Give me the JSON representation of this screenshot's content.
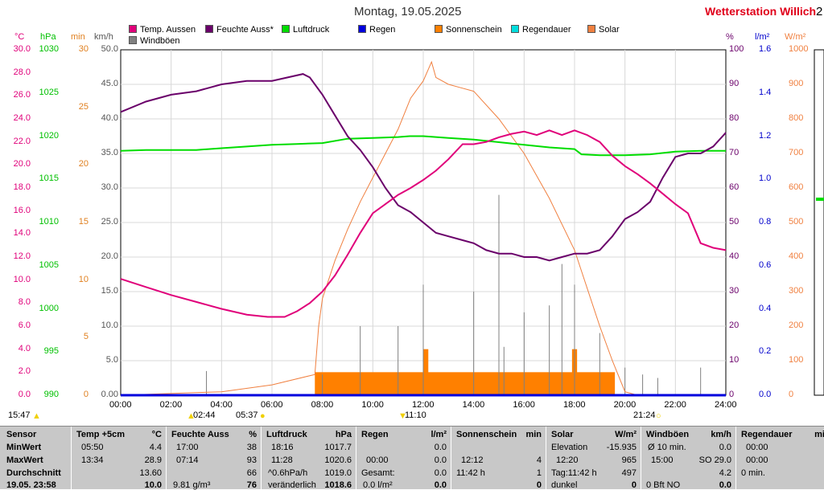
{
  "title": "Montag, 19.05.2025",
  "brand": "Wetterstation Willich",
  "brand_cut": "2",
  "legend": [
    {
      "label": "Temp. Aussen",
      "color": "#e0007a"
    },
    {
      "label": "Feuchte Auss*",
      "color": "#6a006a"
    },
    {
      "label": "Luftdruck",
      "color": "#00dd00"
    },
    {
      "label": "Regen",
      "color": "#0000dd"
    },
    {
      "label": "Sonnenschein",
      "color": "#ff8000"
    },
    {
      "label": "Regendauer",
      "color": "#00dddd"
    },
    {
      "label": "Solar",
      "color": "#f08040"
    },
    {
      "label": "Windböen",
      "color": "#808080"
    }
  ],
  "axes": {
    "units": {
      "temp": "°C",
      "hpa": "hPa",
      "min": "min",
      "kmh": "km/h",
      "pct": "%",
      "rain": "l/m²",
      "solar": "W/m²"
    },
    "temp": [
      "30.0",
      "28.0",
      "26.0",
      "24.0",
      "22.0",
      "20.0",
      "18.0",
      "16.0",
      "14.0",
      "12.0",
      "10.0",
      "8.0",
      "6.0",
      "4.0",
      "2.0",
      "0.0"
    ],
    "hpa": [
      "1030",
      "1025",
      "1020",
      "1015",
      "1010",
      "1005",
      "1000",
      "995",
      "990"
    ],
    "min": [
      "30",
      "25",
      "20",
      "15",
      "10",
      "5",
      "0"
    ],
    "kmh": [
      "50.0",
      "45.0",
      "40.0",
      "35.0",
      "30.0",
      "25.0",
      "20.0",
      "15.0",
      "10.0",
      "5.0",
      "0.00"
    ],
    "pct": [
      "100",
      "90",
      "80",
      "70",
      "60",
      "50",
      "40",
      "30",
      "20",
      "10",
      "0"
    ],
    "rain": [
      "1.6",
      "1.4",
      "1.2",
      "1.0",
      "0.8",
      "0.6",
      "0.4",
      "0.2",
      "0.0"
    ],
    "solar": [
      "1000",
      "900",
      "800",
      "700",
      "600",
      "500",
      "400",
      "300",
      "200",
      "100",
      "0"
    ],
    "x": [
      "00:00",
      "02:00",
      "04:00",
      "06:00",
      "08:00",
      "10:00",
      "12:00",
      "14:00",
      "16:00",
      "18:00",
      "20:00",
      "22:00",
      "24:00"
    ]
  },
  "events": {
    "left_time": "15:47",
    "sunrise": "02:44",
    "t537": "05:37",
    "noon": "11:10",
    "sunset": "21:24"
  },
  "chart_data": {
    "type": "line",
    "x_unit": "hours",
    "xlim": [
      0,
      24
    ],
    "series": [
      {
        "name": "Temp. Aussen",
        "unit": "°C",
        "axis": "temp",
        "color": "#e0007a",
        "points": [
          [
            0,
            10.1
          ],
          [
            1,
            9.4
          ],
          [
            2,
            8.7
          ],
          [
            3,
            8.1
          ],
          [
            4,
            7.5
          ],
          [
            5,
            7.0
          ],
          [
            5.83,
            6.8
          ],
          [
            6.5,
            6.8
          ],
          [
            7,
            7.3
          ],
          [
            7.5,
            8.0
          ],
          [
            8,
            9.0
          ],
          [
            8.5,
            10.4
          ],
          [
            9,
            12.2
          ],
          [
            9.5,
            14.1
          ],
          [
            10,
            15.8
          ],
          [
            10.5,
            16.6
          ],
          [
            11,
            17.4
          ],
          [
            11.5,
            18.0
          ],
          [
            12,
            18.7
          ],
          [
            12.5,
            19.5
          ],
          [
            13,
            20.5
          ],
          [
            13.56,
            21.8
          ],
          [
            14,
            21.8
          ],
          [
            14.5,
            22.0
          ],
          [
            15,
            22.4
          ],
          [
            15.5,
            22.7
          ],
          [
            16,
            22.9
          ],
          [
            16.5,
            22.6
          ],
          [
            17,
            23.0
          ],
          [
            17.5,
            22.6
          ],
          [
            18,
            23.0
          ],
          [
            18.5,
            22.6
          ],
          [
            19,
            22.0
          ],
          [
            19.5,
            20.8
          ],
          [
            20,
            19.9
          ],
          [
            20.5,
            19.2
          ],
          [
            21,
            18.4
          ],
          [
            21.5,
            17.5
          ],
          [
            22,
            16.6
          ],
          [
            22.5,
            15.8
          ],
          [
            23,
            13.2
          ],
          [
            23.5,
            12.8
          ],
          [
            24,
            12.6
          ]
        ]
      },
      {
        "name": "Feuchte Auss*",
        "unit": "%",
        "axis": "pct",
        "color": "#6a006a",
        "points": [
          [
            0,
            82
          ],
          [
            1,
            85
          ],
          [
            2,
            87
          ],
          [
            3,
            88
          ],
          [
            4,
            90
          ],
          [
            5,
            91
          ],
          [
            5.5,
            91
          ],
          [
            6,
            91
          ],
          [
            7.23,
            93
          ],
          [
            7.5,
            92
          ],
          [
            8,
            87
          ],
          [
            8.5,
            81
          ],
          [
            9,
            75
          ],
          [
            9.5,
            71
          ],
          [
            10,
            66
          ],
          [
            10.5,
            60
          ],
          [
            11,
            55
          ],
          [
            11.5,
            53
          ],
          [
            12,
            50
          ],
          [
            12.5,
            47
          ],
          [
            13,
            46
          ],
          [
            13.5,
            45
          ],
          [
            14,
            44
          ],
          [
            14.5,
            42
          ],
          [
            15,
            41
          ],
          [
            15.5,
            41
          ],
          [
            16,
            40
          ],
          [
            16.5,
            40
          ],
          [
            17,
            39
          ],
          [
            17.5,
            40
          ],
          [
            18,
            41
          ],
          [
            18.5,
            41
          ],
          [
            19,
            42
          ],
          [
            19.5,
            46
          ],
          [
            20,
            51
          ],
          [
            20.5,
            53
          ],
          [
            21,
            56
          ],
          [
            21.5,
            63
          ],
          [
            22,
            69
          ],
          [
            22.5,
            70
          ],
          [
            23,
            70
          ],
          [
            23.5,
            72
          ],
          [
            24,
            76
          ]
        ]
      },
      {
        "name": "Luftdruck",
        "unit": "hPa",
        "axis": "hpa",
        "color": "#00dd00",
        "points": [
          [
            0,
            1018.3
          ],
          [
            1,
            1018.4
          ],
          [
            2,
            1018.4
          ],
          [
            3,
            1018.4
          ],
          [
            4,
            1018.6
          ],
          [
            5,
            1018.8
          ],
          [
            6,
            1019.0
          ],
          [
            7,
            1019.1
          ],
          [
            8,
            1019.2
          ],
          [
            9,
            1019.7
          ],
          [
            10,
            1019.8
          ],
          [
            11,
            1019.9
          ],
          [
            11.47,
            1020.0
          ],
          [
            12,
            1020.0
          ],
          [
            13,
            1019.8
          ],
          [
            14,
            1019.6
          ],
          [
            15,
            1019.3
          ],
          [
            16,
            1019.0
          ],
          [
            17,
            1018.7
          ],
          [
            18,
            1018.5
          ],
          [
            18.27,
            1017.9
          ],
          [
            19,
            1017.8
          ],
          [
            20,
            1017.8
          ],
          [
            21,
            1017.9
          ],
          [
            22,
            1018.2
          ],
          [
            23,
            1018.3
          ],
          [
            24,
            1018.3
          ]
        ]
      },
      {
        "name": "Solar",
        "unit": "W/m²",
        "axis": "solar",
        "color": "#f08040",
        "points": [
          [
            0,
            0
          ],
          [
            4,
            10
          ],
          [
            6,
            30
          ],
          [
            7.7,
            60
          ],
          [
            7.85,
            200
          ],
          [
            8,
            280
          ],
          [
            8.5,
            390
          ],
          [
            9,
            480
          ],
          [
            9.5,
            560
          ],
          [
            10,
            630
          ],
          [
            10.5,
            700
          ],
          [
            11,
            770
          ],
          [
            11.5,
            860
          ],
          [
            12,
            910
          ],
          [
            12.33,
            965
          ],
          [
            12.5,
            920
          ],
          [
            13,
            900
          ],
          [
            13.5,
            890
          ],
          [
            14,
            880
          ],
          [
            15,
            800
          ],
          [
            16,
            700
          ],
          [
            17,
            570
          ],
          [
            18,
            420
          ],
          [
            19,
            200
          ],
          [
            19.5,
            100
          ],
          [
            20,
            10
          ],
          [
            20.5,
            0
          ],
          [
            24,
            0
          ]
        ]
      },
      {
        "name": "Sonnenschein",
        "unit": "min",
        "axis": "min",
        "color": "#ff8000",
        "bars": [
          [
            7.7,
            19.6,
            2
          ],
          [
            12.0,
            12.2,
            4
          ],
          [
            17.9,
            18.1,
            4
          ]
        ]
      },
      {
        "name": "Windböen",
        "unit": "km/h",
        "axis": "kmh",
        "color": "#808080",
        "points": [
          [
            3.4,
            3.5
          ],
          [
            8.0,
            3.0
          ],
          [
            9.5,
            10.0
          ],
          [
            11.0,
            10.0
          ],
          [
            12.0,
            16.0
          ],
          [
            14.0,
            15.0
          ],
          [
            15.0,
            29.0
          ],
          [
            15.2,
            7.0
          ],
          [
            16.0,
            12.0
          ],
          [
            17.0,
            13.0
          ],
          [
            17.5,
            19.0
          ],
          [
            18.0,
            16.0
          ],
          [
            19.0,
            9.0
          ],
          [
            20.0,
            4.0
          ],
          [
            20.7,
            3.0
          ],
          [
            21.3,
            2.5
          ],
          [
            23.0,
            4.0
          ]
        ]
      },
      {
        "name": "Regen",
        "unit": "l/m²",
        "axis": "rain",
        "color": "#0000dd",
        "points": [
          [
            0,
            0
          ],
          [
            24,
            0
          ]
        ]
      }
    ]
  },
  "table": {
    "rows": [
      "Sensor",
      "MinWert",
      "MaxWert",
      "Durchschnitt",
      "19.05. 23:58"
    ],
    "temp": {
      "head": "Temp +5cm",
      "unit": "°C",
      "min_t": "05:50",
      "min_v": "4.4",
      "max_t": "13:34",
      "max_v": "28.9",
      "avg": "13.60",
      "cur": "10.0"
    },
    "hum": {
      "head": "Feuchte Auss",
      "unit": "%",
      "min_t": "17:00",
      "min_v": "38",
      "max_t": "07:14",
      "max_v": "93",
      "avg": "66",
      "cur_l": "9.81 g/m³",
      "cur": "76"
    },
    "press": {
      "head": "Luftdruck",
      "unit": "hPa",
      "min_t": "18:16",
      "min_v": "1017.7",
      "max_t": "11:28",
      "max_v": "1020.6",
      "avg_l": "^0.6hPa/h",
      "avg": "1019.0",
      "cur_l": "veränderlich",
      "cur": "1018.6"
    },
    "rain": {
      "head": "Regen",
      "unit": "l/m²",
      "r1": "0.0",
      "r2_t": "00:00",
      "r2": "0.0",
      "r3_l": "Gesamt:",
      "r3": "0.0",
      "cur_l": "0.0 l/m²",
      "cur": "0.0"
    },
    "sun": {
      "head": "Sonnenschein",
      "unit": "min",
      "r2_t": "12:12",
      "r2": "4",
      "r3_t": "11:42 h",
      "r3": "1",
      "cur": "0"
    },
    "solar": {
      "head": "Solar",
      "unit": "W/m²",
      "r1_l": "Elevation",
      "r1": "-15.935",
      "r2_t": "12:20",
      "r2": "965",
      "r3_l": "Tag:11:42 h",
      "r3": "497",
      "cur_l": "dunkel",
      "cur": "0"
    },
    "wind": {
      "head": "Windböen",
      "unit": "km/h",
      "r1_l": "Ø 10 min.",
      "r1": "0.0",
      "r2_t": "15:00",
      "r2": "SO 29.0",
      "r3": "4.2",
      "cur_l": "0 Bft NO",
      "cur": "0.0"
    },
    "rdur": {
      "head": "Regendauer",
      "unit": "mi",
      "r1_t": "00:00",
      "r2_t": "00:00",
      "r3": "0 min."
    }
  }
}
